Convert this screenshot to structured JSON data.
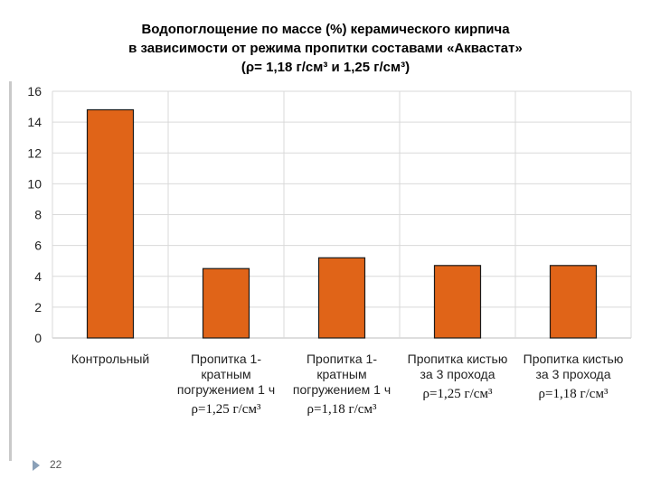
{
  "title_lines": [
    "Водопоглощение по массе (%) керамического кирпича",
    "в зависимости от режима пропитки составами «Аквастат»",
    "(ρ= 1,18 г/см³ и 1,25 г/см³)"
  ],
  "page_number": "22",
  "colors": {
    "bar": "#e06418",
    "bar_edge": "#1a1a1a",
    "grid": "#d9d9d9",
    "axis": "#bdbdbd"
  },
  "chart_data": {
    "type": "bar",
    "title": "Водопоглощение по массе (%) керамического кирпича в зависимости от режима пропитки составами «Аквастат» (ρ= 1,18 г/см³ и 1,25 г/см³)",
    "categories": [
      [
        "Контрольный"
      ],
      [
        "Пропитка 1-",
        "кратным",
        "погружением 1 ч"
      ],
      [
        "Пропитка 1-",
        "кратным",
        "погружением 1 ч"
      ],
      [
        "Пропитка кистью",
        "за 3 прохода"
      ],
      [
        "Пропитка кистью",
        "за 3 прохода"
      ]
    ],
    "density_labels": [
      "",
      "ρ=1,25 г/см³",
      "ρ=1,18 г/см³",
      "ρ=1,25 г/см³",
      "ρ=1,18 г/см³"
    ],
    "values": [
      14.8,
      4.5,
      5.2,
      4.7,
      4.7
    ],
    "ylim": [
      0,
      16
    ],
    "yticks": [
      0,
      2,
      4,
      6,
      8,
      10,
      12,
      14,
      16
    ],
    "grid": true,
    "xlabel": "",
    "ylabel": ""
  }
}
